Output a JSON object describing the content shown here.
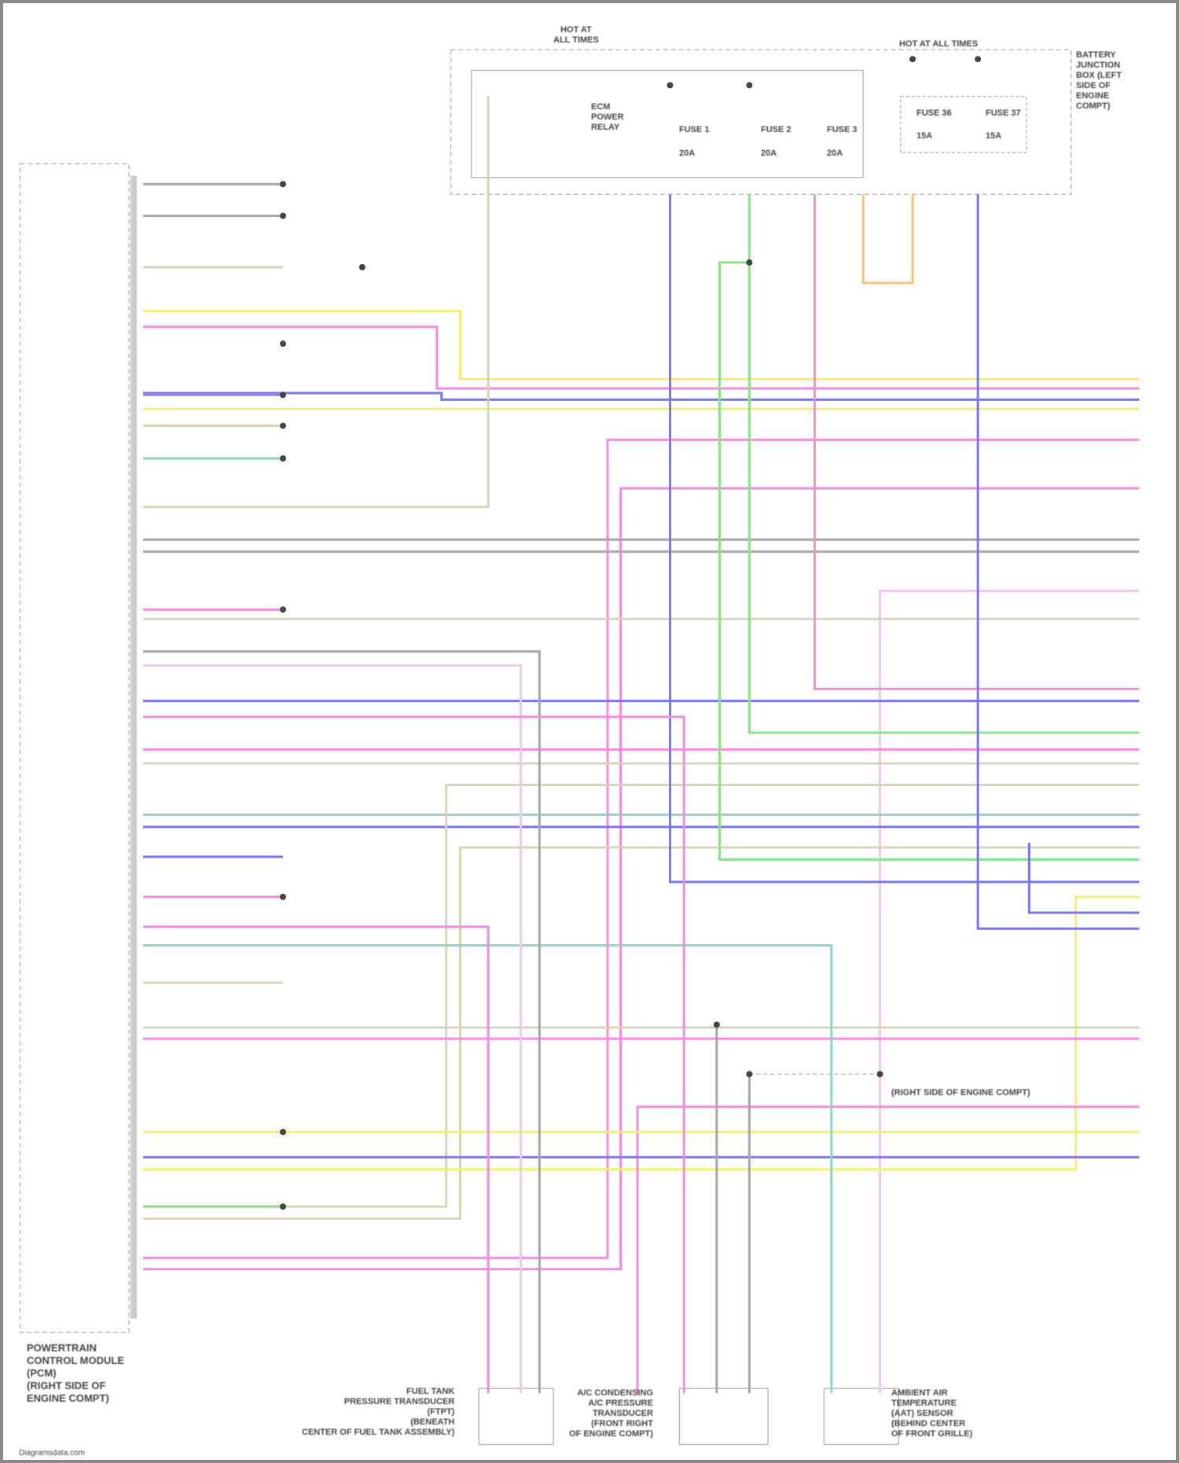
{
  "diagram": {
    "pcm_label": "POWERTRAIN\nCONTROL MODULE\n(PCM)\n(RIGHT SIDE OF\nENGINE COMPT)",
    "hot_at_all_times_top": "HOT AT\nALL TIMES",
    "hot_at_all_times_right": "HOT AT ALL TIMES",
    "relay_label": "ECM\nPOWER\nRELAY",
    "fuses": [
      {
        "name": "FUSE 1",
        "rating": "20A"
      },
      {
        "name": "FUSE 2",
        "rating": "20A"
      },
      {
        "name": "FUSE 3",
        "rating": "20A"
      },
      {
        "name": "FUSE 36",
        "rating": "15A"
      },
      {
        "name": "FUSE 37",
        "rating": "15A"
      }
    ],
    "junction_box_label": "BATTERY\nJUNCTION\nBOX (LEFT\nSIDE OF\nENGINE\nCOMPT)",
    "fuel_tank_sensor_label": "FUEL TANK\nPRESSURE TRANSDUCER\n(FTPT)\n(BENEATH\nCENTER OF FUEL TANK ASSEMBLY)",
    "ac_sensor_label": "A/C CONDENSING\nA/C PRESSURE\nTRANSDUCER\n(FRONT RIGHT\nOF ENGINE COMPT)",
    "ambient_sensor_label": "AMBIENT AIR\nTEMPERATURE\n(AAT) SENSOR\n(BEHIND CENTER\nOF FRONT GRILLE)",
    "splice_label": "(RIGHT SIDE OF ENGINE COMPT)",
    "watermark": "Diagramsdata.com"
  },
  "colors": {
    "yellow": "#f2f07a",
    "pink": "#f28ee0",
    "blue": "#7a78e6",
    "green": "#8fe08a",
    "tan": "#d9d3b8",
    "gray": "#a8a8a8",
    "teal": "#8fd4c4",
    "lightpink": "#f2c8ec",
    "orange": "#f5c27a",
    "purple": "#9a88e8"
  }
}
